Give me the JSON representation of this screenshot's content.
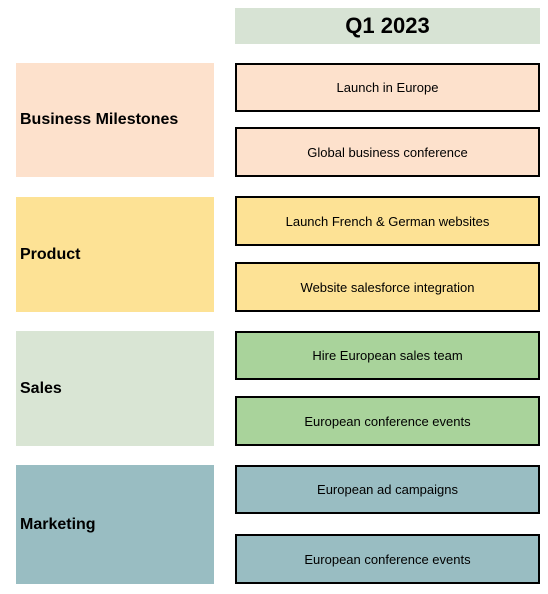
{
  "header": {
    "title": "Q1 2023"
  },
  "rows": [
    {
      "category": "Business Milestones",
      "category_color": "#fde1cc",
      "item_color": "#fde1cc",
      "items": [
        "Launch in Europe",
        "Global business conference"
      ]
    },
    {
      "category": "Product",
      "category_color": "#fde295",
      "item_color": "#fde295",
      "items": [
        "Launch French & German websites",
        "Website salesforce integration"
      ]
    },
    {
      "category": "Sales",
      "category_color": "#d9e5d4",
      "item_color": "#a9d39b",
      "items": [
        "Hire European sales team",
        "European conference events"
      ]
    },
    {
      "category": "Marketing",
      "category_color": "#99bdc2",
      "item_color": "#99bdc2",
      "items": [
        "European ad campaigns",
        "European conference events"
      ]
    }
  ]
}
